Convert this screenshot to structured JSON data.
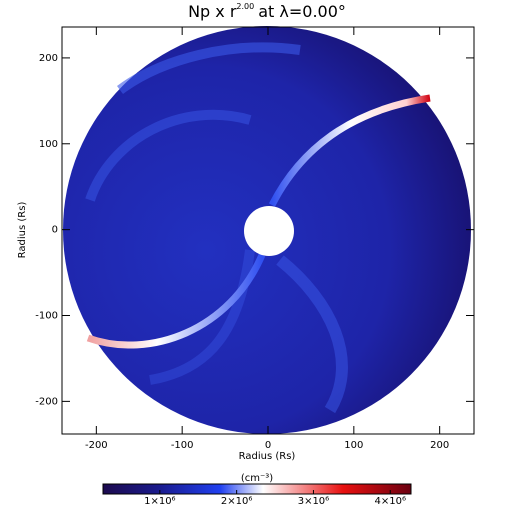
{
  "chart_data": {
    "type": "heatmap",
    "title": "Np x r",
    "title_exponent": "2.00",
    "title_suffix": "at λ=0.00°",
    "xlabel": "Radius (Rs)",
    "ylabel": "Radius (Rs)",
    "xlim": [
      -240,
      240
    ],
    "xticks": [
      -200,
      -100,
      0,
      100,
      200
    ],
    "ylim": [
      -238,
      236
    ],
    "yticks": [
      -200,
      -100,
      0,
      100,
      200
    ],
    "colorbar_label": "(cm⁻³)",
    "clim": [
      260000,
      4270000
    ],
    "cticks": [
      {
        "value": 1000000,
        "label": "1×10⁶"
      },
      {
        "value": 2000000,
        "label": "2×10⁶"
      },
      {
        "value": 3000000,
        "label": "3×10⁶"
      },
      {
        "value": 4000000,
        "label": "4×10⁶"
      }
    ]
  }
}
